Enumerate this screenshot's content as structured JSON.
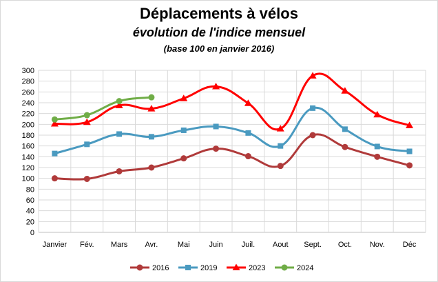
{
  "chart_data": {
    "type": "line",
    "title": "Déplacements à vélos",
    "subtitle": "évolution de l'indice mensuel",
    "note": "(base 100 en janvier 2016)",
    "categories": [
      "Janvier",
      "Fév.",
      "Mars",
      "Avr.",
      "Mai",
      "Juin",
      "Juil.",
      "Aout",
      "Sept.",
      "Oct.",
      "Nov.",
      "Déc"
    ],
    "ylim": [
      0,
      300
    ],
    "yticks": [
      "0",
      "20",
      "40",
      "60",
      "80",
      "100",
      "120",
      "140",
      "160",
      "180",
      "200",
      "220",
      "240",
      "260",
      "280",
      "300"
    ],
    "grid": true,
    "legend_position": "bottom",
    "series": [
      {
        "name": "2016",
        "color": "#b03a3a",
        "marker": "circle",
        "values": [
          100,
          99,
          113,
          120,
          137,
          155,
          141,
          123,
          180,
          158,
          140,
          124
        ]
      },
      {
        "name": "2019",
        "color": "#4a9ac0",
        "marker": "square",
        "values": [
          146,
          163,
          182,
          177,
          189,
          196,
          184,
          160,
          230,
          191,
          159,
          150
        ]
      },
      {
        "name": "2023",
        "color": "#ff0000",
        "marker": "triangle",
        "values": [
          201,
          204,
          235,
          229,
          248,
          270,
          239,
          192,
          290,
          262,
          218,
          198
        ]
      },
      {
        "name": "2024",
        "color": "#70ad47",
        "marker": "circle",
        "values": [
          209,
          217,
          243,
          250,
          null,
          null,
          null,
          null,
          null,
          null,
          null,
          null
        ]
      }
    ]
  }
}
